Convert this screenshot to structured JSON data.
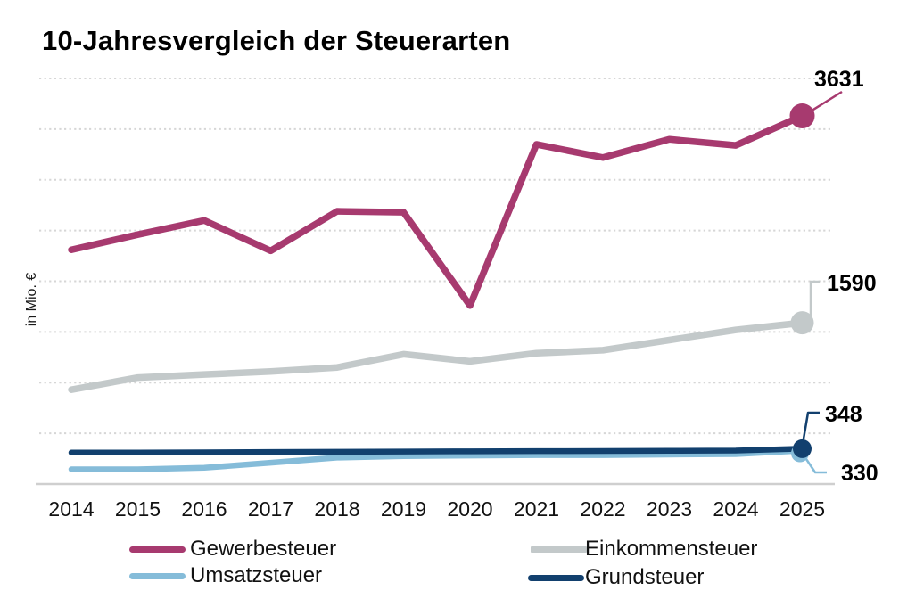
{
  "title": "10-Jahresvergleich der Steuerarten",
  "ylabel": "in Mio. €",
  "chart_data": {
    "type": "line",
    "title": "10-Jahresvergleich der Steuerarten",
    "xlabel": "",
    "ylabel": "in Mio. €",
    "x": [
      "2014",
      "2015",
      "2016",
      "2017",
      "2018",
      "2019",
      "2020",
      "2021",
      "2022",
      "2023",
      "2024",
      "2025"
    ],
    "ylim": [
      0,
      4000
    ],
    "gridline_step": 500,
    "grid": "horizontal-dotted",
    "legend_position": "bottom",
    "axis_color": "#CFCFCF",
    "gridline_color": "#D6D6D6",
    "series": [
      {
        "name": "Gewerbesteuer",
        "color": "#A73A6F",
        "values": [
          2310,
          2460,
          2600,
          2300,
          2690,
          2680,
          1760,
          3350,
          3220,
          3400,
          3340,
          3631
        ],
        "end_label": "3631"
      },
      {
        "name": "Einkommensteuer",
        "color": "#C3C9CA",
        "values": [
          930,
          1050,
          1080,
          1110,
          1150,
          1280,
          1210,
          1290,
          1320,
          1420,
          1520,
          1590
        ],
        "end_label": "1590"
      },
      {
        "name": "Umsatzsteuer",
        "color": "#85BCD9",
        "values": [
          145,
          145,
          160,
          210,
          260,
          275,
          280,
          285,
          285,
          290,
          295,
          330
        ],
        "end_label": "330"
      },
      {
        "name": "Grundsteuer",
        "color": "#12406E",
        "values": [
          310,
          310,
          312,
          315,
          318,
          320,
          322,
          324,
          325,
          327,
          330,
          348
        ],
        "end_label": "348"
      }
    ]
  }
}
